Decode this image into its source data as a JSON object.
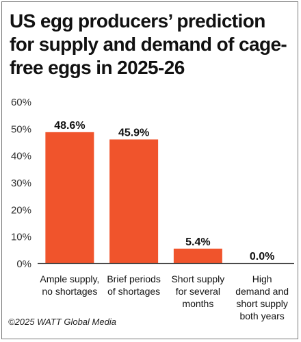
{
  "title": "US egg producers’ prediction for supply and demand of cage-free eggs in 2025-26",
  "credit": "©2025 WATT Global Media",
  "colors": {
    "bar": "#F0542C",
    "axis": "#444444",
    "text": "#111111"
  },
  "chart_data": {
    "type": "bar",
    "title": "US egg producers’ prediction for supply and demand of cage-free eggs in 2025-26",
    "categories": [
      [
        "Ample supply,",
        "no shortages"
      ],
      [
        "Brief periods",
        "of shortages"
      ],
      [
        "Short supply",
        "for several",
        "months"
      ],
      [
        "High",
        "demand and",
        "short supply",
        "both years"
      ]
    ],
    "values": [
      48.6,
      45.9,
      5.4,
      0.0
    ],
    "data_labels": [
      "48.6%",
      "45.9%",
      "5.4%",
      "0.0%"
    ],
    "yticks": [
      "0%",
      "10%",
      "20%",
      "30%",
      "40%",
      "50%",
      "60%"
    ],
    "ytick_values": [
      0,
      10,
      20,
      30,
      40,
      50,
      60
    ],
    "ylim": [
      0,
      60
    ],
    "xlabel": "",
    "ylabel": "",
    "grid": false,
    "legend": "none"
  }
}
